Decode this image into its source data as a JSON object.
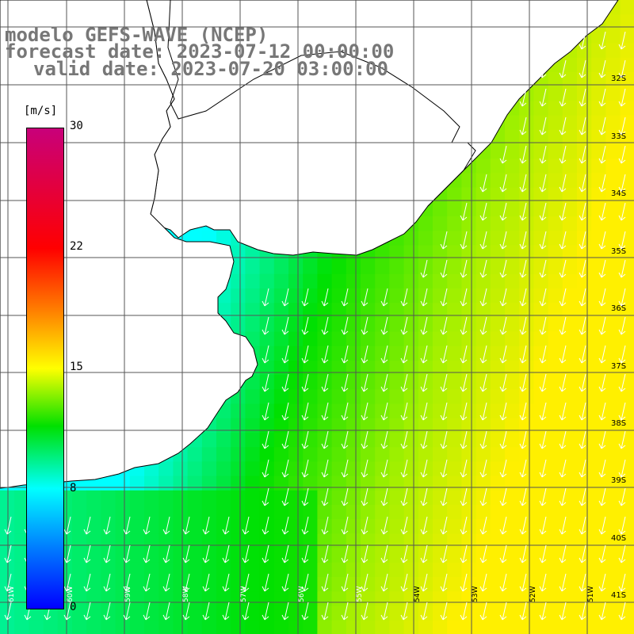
{
  "title": {
    "line1": "modelo GEFS-WAVE (NCEP)",
    "line2": "forecast date: 2023-07-12 00:00:00",
    "line3": "valid date: 2023-07-20 03:00:00"
  },
  "colorbar": {
    "unit": "[m/s]",
    "labels": [
      "30",
      "22",
      "15",
      "8",
      "0"
    ],
    "colors": [
      "#c8007a",
      "#ff0000",
      "#ff8000",
      "#ffff00",
      "#00e000",
      "#00ffff",
      "#0080ff",
      "#0000ff"
    ]
  },
  "latitude_labels": [
    "32S",
    "33S",
    "34S",
    "35S",
    "36S",
    "37S",
    "38S",
    "39S",
    "40S",
    "41S"
  ],
  "longitude_labels": [
    "61W",
    "60W",
    "59W",
    "58W",
    "57W",
    "56W",
    "55W",
    "54W",
    "53W",
    "52W",
    "51W"
  ],
  "map": {
    "variable": "wind speed",
    "land_color": "#ffffff",
    "arrow_color": "#ffffff",
    "arrow_direction": "south-southwest"
  }
}
